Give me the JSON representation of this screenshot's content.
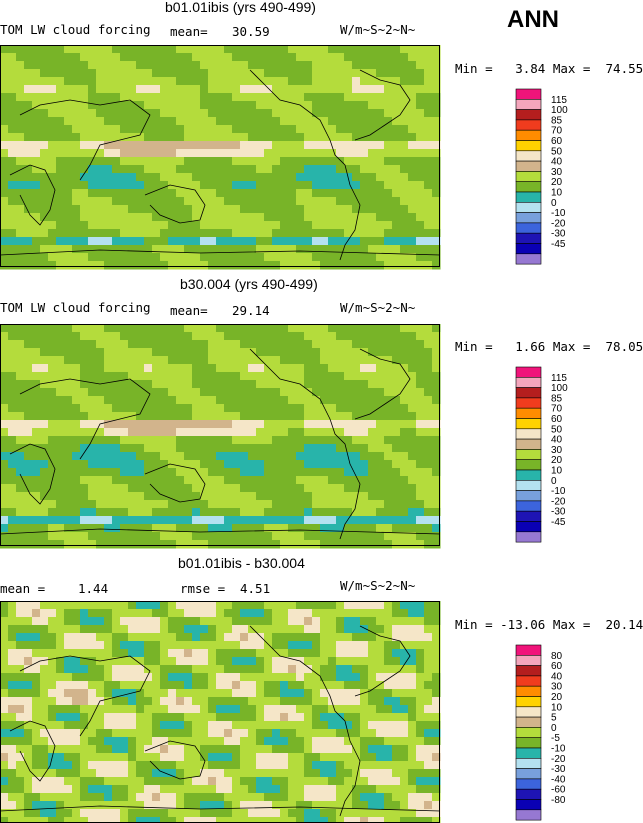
{
  "season_label": "ANN",
  "chart_data": [
    {
      "type": "heatmap",
      "title": "b01.01ibis (yrs 490-499)",
      "left_label": "TOM LW cloud forcing",
      "stat_label": "mean=",
      "stat_value": "30.59",
      "units": "W/m~S~2~N~",
      "minmax": "Min =   3.84 Max =  74.55",
      "min": 3.84,
      "max": 74.55,
      "mean": 30.59,
      "legend_levels": [
        "115",
        "100",
        "85",
        "70",
        "60",
        "50",
        "40",
        "30",
        "20",
        "10",
        "0",
        "-10",
        "-20",
        "-30",
        "-45"
      ],
      "legend_colors": [
        "#f0147a",
        "#f4a6bc",
        "#b41e1e",
        "#f03c1e",
        "#ff8c00",
        "#ffd200",
        "#f5e6c8",
        "#d2b48c",
        "#b4dc3c",
        "#78b428",
        "#28b4aa",
        "#b4e1f0",
        "#78a0dc",
        "#3c64dc",
        "#1e14b4",
        "#0a00b4",
        "#9678d2"
      ]
    },
    {
      "type": "heatmap",
      "title": "b30.004 (yrs 490-499)",
      "left_label": "TOM LW cloud forcing",
      "stat_label": "mean=",
      "stat_value": "29.14",
      "units": "W/m~S~2~N~",
      "minmax": "Min =   1.66 Max =  78.05",
      "min": 1.66,
      "max": 78.05,
      "mean": 29.14,
      "legend_levels": [
        "115",
        "100",
        "85",
        "70",
        "60",
        "50",
        "40",
        "30",
        "20",
        "10",
        "0",
        "-10",
        "-20",
        "-30",
        "-45"
      ],
      "legend_colors": [
        "#f0147a",
        "#f4a6bc",
        "#b41e1e",
        "#f03c1e",
        "#ff8c00",
        "#ffd200",
        "#f5e6c8",
        "#d2b48c",
        "#b4dc3c",
        "#78b428",
        "#28b4aa",
        "#b4e1f0",
        "#78a0dc",
        "#3c64dc",
        "#1e14b4",
        "#0a00b4",
        "#9678d2"
      ]
    },
    {
      "type": "heatmap",
      "title": "b01.01ibis - b30.004",
      "left_label": "mean =",
      "left_value": "1.44",
      "stat_label": "rmse =",
      "stat_value": "4.51",
      "units": "W/m~S~2~N~",
      "minmax": "Min = -13.06 Max =  20.14",
      "min": -13.06,
      "max": 20.14,
      "mean": 1.44,
      "rmse": 4.51,
      "legend_levels": [
        "80",
        "60",
        "40",
        "30",
        "20",
        "10",
        "5",
        "0",
        "-5",
        "-10",
        "-20",
        "-30",
        "-40",
        "-60",
        "-80"
      ],
      "legend_colors": [
        "#f0147a",
        "#f4a6bc",
        "#b41e1e",
        "#f03c1e",
        "#ff8c00",
        "#ffd200",
        "#f5e6c8",
        "#d2b48c",
        "#b4dc3c",
        "#78b428",
        "#28b4aa",
        "#b4e1f0",
        "#78a0dc",
        "#3c64dc",
        "#1e14b4",
        "#0a00b4",
        "#9678d2"
      ]
    }
  ]
}
